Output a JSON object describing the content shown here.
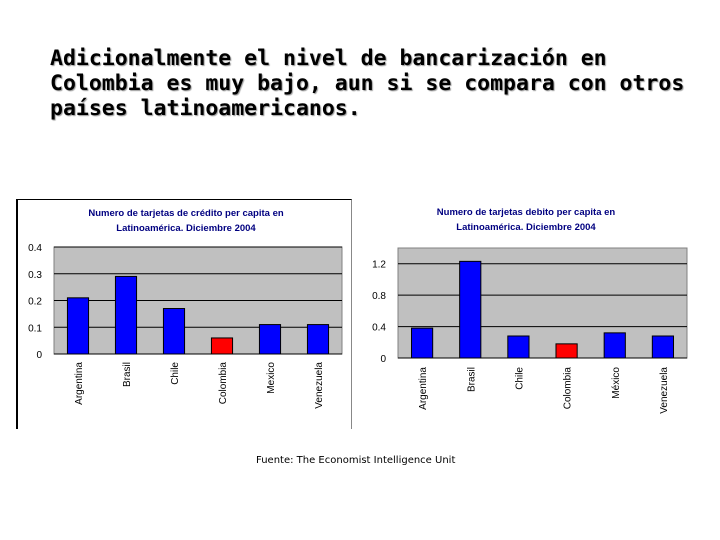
{
  "slide": {
    "title": "Adicionalmente el nivel de bancarización en Colombia es muy bajo, aun si se compara con otros países latinoamericanos.",
    "source": "Fuente: The Economist Intelligence Unit"
  },
  "chart_data": [
    {
      "id": "credit",
      "type": "bar",
      "title": "Numero de tarjetas de crédito per capita en Latinoamérica. Diciembre 2004",
      "title_lines": [
        "Numero de tarjetas de crédito per capita en",
        "Latinoamérica. Diciembre 2004"
      ],
      "categories": [
        "Argentina",
        "Brasil",
        "Chile",
        "Colombia",
        "Mexico",
        "Venezuela"
      ],
      "values": [
        0.21,
        0.29,
        0.17,
        0.06,
        0.11,
        0.11
      ],
      "ylim": [
        0,
        0.4
      ],
      "yticks": [
        0,
        0.1,
        0.2,
        0.3,
        0.4
      ],
      "ytick_labels": [
        "0",
        "0.1",
        "0.2",
        "0.3",
        "0.4"
      ],
      "grid": true,
      "legend": "none",
      "bar_color": "#0000ff",
      "highlight_color": "#ff0000",
      "highlight_category": "Colombia",
      "plot_background": "#c0c0c0"
    },
    {
      "id": "debit",
      "type": "bar",
      "title": "Numero de tarjetas debito per capita en Latinoamérica. Diciembre 2004",
      "title_lines": [
        "Numero de tarjetas debito per capita en",
        "Latinoamérica. Diciembre 2004"
      ],
      "categories": [
        "Argentina",
        "Brasil",
        "Chile",
        "Colombia",
        "México",
        "Venezuela"
      ],
      "values": [
        0.38,
        1.23,
        0.28,
        0.18,
        0.32,
        0.28
      ],
      "ylim": [
        0,
        1.4
      ],
      "yticks": [
        0,
        0.4,
        0.8,
        1.2
      ],
      "ytick_labels": [
        "0",
        "0.4",
        "0.8",
        "1.2"
      ],
      "grid": true,
      "legend": "none",
      "bar_color": "#0000ff",
      "highlight_color": "#ff0000",
      "highlight_category": "Colombia",
      "plot_background": "#c0c0c0"
    }
  ]
}
